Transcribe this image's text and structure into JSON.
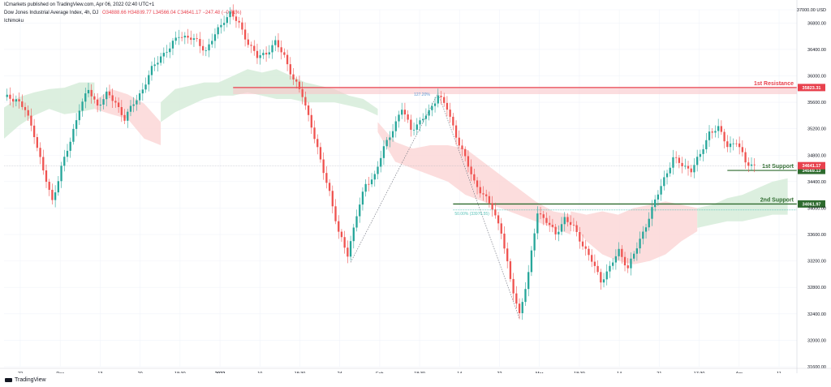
{
  "header": {
    "published": "ICmarkets published on TradingView.com, Apr 06, 2022 02:40 UTC+1",
    "symbol": "Dow Jones Industrial Average Index, 4h, DJ",
    "o": "O34888.66",
    "h": "H34889.77",
    "l": "L34566.04",
    "c": "C34641.17",
    "chg": "−247.48 (−0.71%)",
    "indicator": "Ichimoku"
  },
  "footer": {
    "brand": "TradingView"
  },
  "chart_data": {
    "type": "candlestick",
    "instrument": "Dow Jones Industrial Average Index, 4h, DJ",
    "currency_label": "USD",
    "ylim": [
      31600,
      37000
    ],
    "y_ticks": [
      37000,
      36800,
      36400,
      36000,
      35600,
      35200,
      34800,
      34400,
      34000,
      33600,
      33200,
      32800,
      32400,
      32000,
      31600
    ],
    "x_ticks": [
      "22",
      "Dec",
      "13",
      "20",
      "18:30",
      "2022",
      "10",
      "18:30",
      "24",
      "Feb",
      "18:30",
      "14",
      "22",
      "Mar",
      "18:30",
      "14",
      "21",
      "17:30",
      "Apr",
      "11"
    ],
    "levels": [
      {
        "name": "1st Resistance",
        "value": 35823.31,
        "color": "#e8414d"
      },
      {
        "name": "1st Support",
        "value": 34569.13,
        "color": "#2e6b2e"
      },
      {
        "name": "2nd Support",
        "value": 34061.97,
        "color": "#2e6b2e"
      }
    ],
    "last_price": 34641.17,
    "fib_labels": [
      "127.20%",
      "50.00% (33970.55)"
    ],
    "price_path": [
      [
        0,
        35680
      ],
      [
        4,
        35650
      ],
      [
        7,
        35480
      ],
      [
        10,
        35120
      ],
      [
        13,
        34560
      ],
      [
        16,
        34100
      ],
      [
        19,
        34620
      ],
      [
        22,
        35000
      ],
      [
        25,
        35520
      ],
      [
        28,
        35780
      ],
      [
        31,
        35550
      ],
      [
        34,
        35720
      ],
      [
        37,
        35600
      ],
      [
        40,
        35350
      ],
      [
        43,
        35580
      ],
      [
        46,
        35800
      ],
      [
        49,
        36100
      ],
      [
        52,
        36300
      ],
      [
        55,
        36420
      ],
      [
        58,
        36620
      ],
      [
        61,
        36580
      ],
      [
        64,
        36520
      ],
      [
        67,
        36380
      ],
      [
        70,
        36620
      ],
      [
        73,
        36850
      ],
      [
        75,
        36950
      ],
      [
        78,
        36780
      ],
      [
        81,
        36500
      ],
      [
        84,
        36280
      ],
      [
        87,
        36350
      ],
      [
        90,
        36500
      ],
      [
        93,
        36300
      ],
      [
        96,
        35950
      ],
      [
        99,
        35700
      ],
      [
        102,
        35250
      ],
      [
        105,
        34700
      ],
      [
        108,
        34250
      ],
      [
        111,
        33620
      ],
      [
        114,
        33300
      ],
      [
        117,
        33900
      ],
      [
        120,
        34350
      ],
      [
        123,
        34500
      ],
      [
        126,
        34900
      ],
      [
        129,
        35200
      ],
      [
        132,
        35500
      ],
      [
        135,
        35200
      ],
      [
        138,
        35300
      ],
      [
        141,
        35450
      ],
      [
        144,
        35720
      ],
      [
        147,
        35500
      ],
      [
        150,
        35100
      ],
      [
        153,
        34750
      ],
      [
        156,
        34400
      ],
      [
        159,
        34200
      ],
      [
        162,
        34000
      ],
      [
        165,
        33650
      ],
      [
        168,
        32900
      ],
      [
        171,
        32400
      ],
      [
        174,
        33000
      ],
      [
        177,
        33950
      ],
      [
        180,
        33800
      ],
      [
        183,
        33600
      ],
      [
        186,
        33850
      ],
      [
        189,
        33700
      ],
      [
        192,
        33450
      ],
      [
        195,
        33200
      ],
      [
        198,
        32900
      ],
      [
        201,
        33100
      ],
      [
        204,
        33350
      ],
      [
        207,
        33100
      ],
      [
        210,
        33400
      ],
      [
        213,
        33750
      ],
      [
        216,
        34100
      ],
      [
        219,
        34450
      ],
      [
        222,
        34750
      ],
      [
        225,
        34650
      ],
      [
        228,
        34580
      ],
      [
        231,
        34800
      ],
      [
        234,
        35150
      ],
      [
        237,
        35200
      ],
      [
        240,
        34950
      ],
      [
        243,
        35000
      ],
      [
        246,
        34700
      ],
      [
        249,
        34641.17
      ]
    ],
    "ichimoku_cloud": {
      "bull_color": "#d6ecd9",
      "bear_color": "#fbd7d7",
      "segments": [
        {
          "bias": "bull",
          "from": 0,
          "to": 30,
          "upper": [
            35520,
            35680,
            35750,
            35800,
            35820,
            35900,
            35900
          ],
          "lower": [
            35050,
            35250,
            35400,
            35500,
            35420,
            35450,
            35500
          ]
        },
        {
          "bias": "bear",
          "from": 30,
          "to": 52,
          "upper": [
            35620,
            35800,
            35720,
            35580,
            35300
          ],
          "lower": [
            35500,
            35420,
            35350,
            35050,
            34950
          ]
        },
        {
          "bias": "bull",
          "from": 52,
          "to": 124,
          "upper": [
            35600,
            35800,
            35850,
            35900,
            35900,
            36000,
            36100,
            36050,
            36100,
            36000,
            35900,
            35850,
            35800,
            35700,
            35650,
            35500
          ],
          "lower": [
            35300,
            35450,
            35550,
            35650,
            35700,
            35700,
            35750,
            35700,
            35650,
            35650,
            35600,
            35600,
            35600,
            35550,
            35500,
            35400
          ]
        },
        {
          "bias": "bear",
          "from": 124,
          "to": 188,
          "upper": [
            35300,
            35000,
            34900,
            34950,
            34950,
            34900,
            34700,
            34500,
            34300,
            34100,
            33950,
            33900
          ],
          "lower": [
            35150,
            34700,
            34600,
            34500,
            34400,
            34200,
            34100,
            34000,
            33900,
            33800,
            33700,
            33600
          ]
        },
        {
          "bias": "bear",
          "from": 188,
          "to": 230,
          "upper": [
            33950,
            33900,
            33950,
            33900,
            34000,
            34050,
            34100,
            34050,
            34000
          ],
          "lower": [
            33800,
            33500,
            33300,
            33200,
            33150,
            33200,
            33300,
            33500,
            33650
          ]
        },
        {
          "bias": "bull",
          "from": 230,
          "to": 260,
          "upper": [
            34000,
            34050,
            34150,
            34200,
            34300,
            34400,
            34450
          ],
          "lower": [
            33700,
            33750,
            33800,
            33800,
            33850,
            33900,
            33900
          ]
        }
      ]
    },
    "grid": true,
    "legend_position": "top-left"
  }
}
